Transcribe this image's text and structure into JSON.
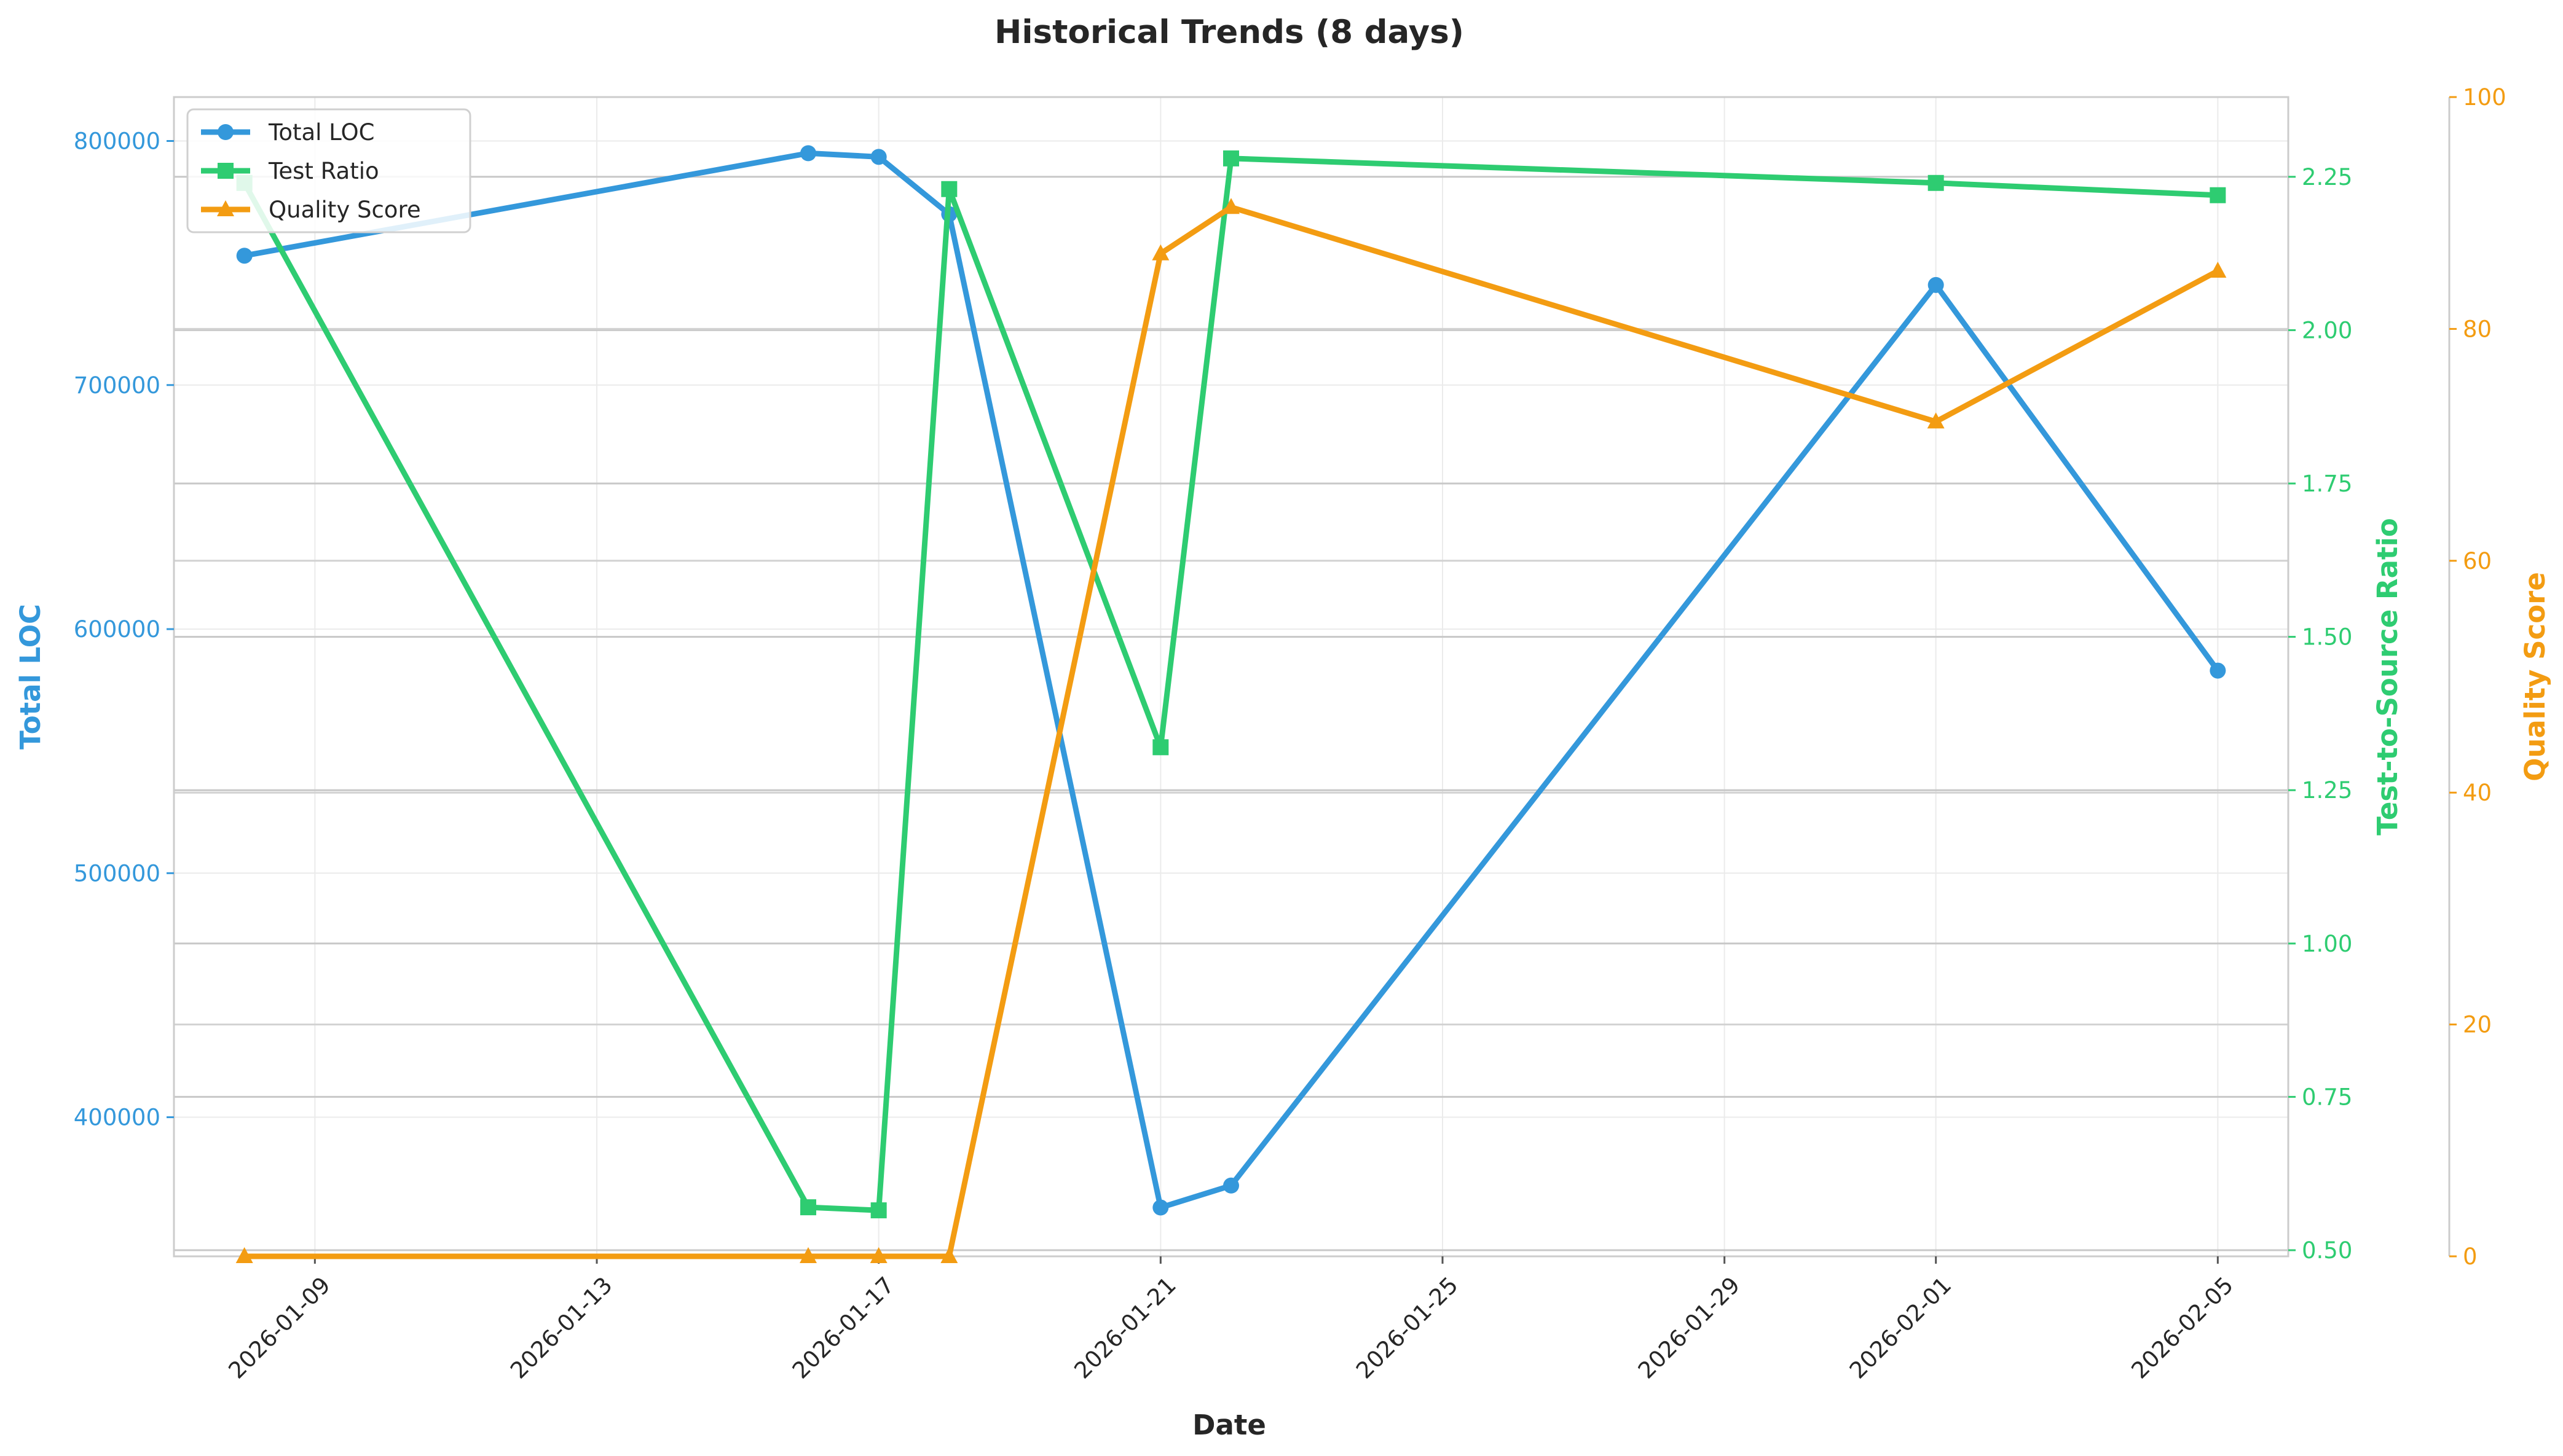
{
  "chart_data": {
    "type": "line",
    "title": "Historical Trends (8 days)",
    "xlabel": "Date",
    "x_ticks": [
      "2026-01-09",
      "2026-01-13",
      "2026-01-17",
      "2026-01-21",
      "2026-01-25",
      "2026-01-29",
      "2026-02-01",
      "2026-02-05"
    ],
    "x": [
      "2026-01-08",
      "2026-01-16",
      "2026-01-17",
      "2026-01-18",
      "2026-01-21",
      "2026-01-22",
      "2026-02-01",
      "2026-02-05"
    ],
    "xlim": [
      "2026-01-07",
      "2026-02-06"
    ],
    "grid": true,
    "legend_position": "top-left",
    "axes": {
      "left": {
        "label": "Total LOC",
        "color": "#3498db",
        "ylim": [
          343000,
          818000
        ],
        "ticks": [
          400000,
          500000,
          600000,
          700000,
          800000
        ]
      },
      "right": {
        "label": "Test-to-Source Ratio",
        "color": "#2ecc71",
        "ylim": [
          0.49,
          2.38
        ],
        "ticks": [
          0.5,
          0.75,
          1.0,
          1.25,
          1.5,
          1.75,
          2.0,
          2.25
        ]
      },
      "right2": {
        "label": "Quality Score",
        "color": "#f39c12",
        "ylim": [
          0,
          100
        ],
        "ticks": [
          0,
          20,
          40,
          60,
          80,
          100
        ]
      }
    },
    "series": [
      {
        "name": "Total LOC",
        "axis": "left",
        "marker": "circle",
        "color": "#3498db",
        "values": [
          753000,
          795000,
          793500,
          770000,
          363000,
          372000,
          741000,
          583000
        ]
      },
      {
        "name": "Test Ratio",
        "axis": "right",
        "marker": "square",
        "color": "#2ecc71",
        "values": [
          2.24,
          0.57,
          0.565,
          2.23,
          1.32,
          2.28,
          2.24,
          2.22
        ]
      },
      {
        "name": "Quality Score",
        "axis": "right2",
        "marker": "triangle",
        "color": "#f39c12",
        "values": [
          0,
          0,
          0,
          0,
          86.5,
          90.5,
          72.0,
          85.0
        ]
      }
    ]
  }
}
